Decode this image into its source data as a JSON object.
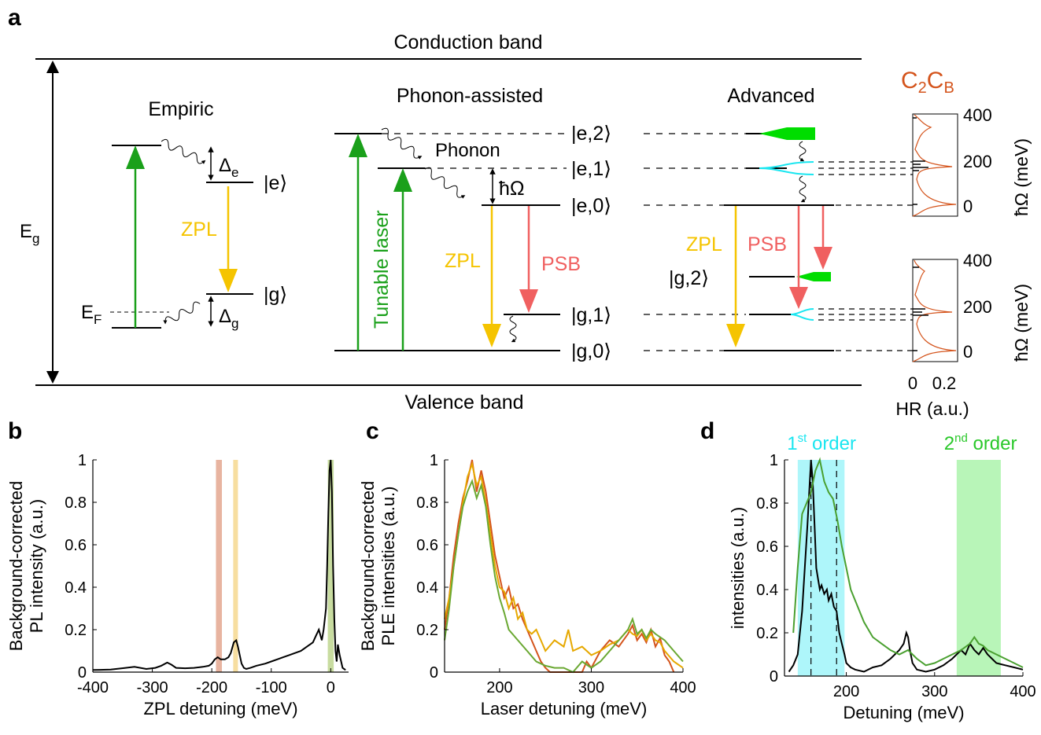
{
  "panel_a": {
    "panel_label": "a",
    "conduction_band": "Conduction band",
    "valence_band": "Valence band",
    "eg_label": "E",
    "eg_sub": "g",
    "ef_label": "E",
    "ef_sub": "F",
    "empiric": {
      "title": "Empiric",
      "delta": "Δ",
      "delta_e_sub": "e",
      "delta_g_sub": "g",
      "state_e": "|e⟩",
      "state_g": "|g⟩",
      "zpl": "ZPL"
    },
    "phonon_assisted": {
      "title": "Phonon-assisted",
      "phonon": "Phonon",
      "hbar_omega": "ħΩ",
      "tunable_laser": "Tunable laser",
      "zpl": "ZPL",
      "psb": "PSB",
      "levels": [
        "|e,2⟩",
        "|e,1⟩",
        "|e,0⟩",
        "|g,1⟩",
        "|g,0⟩"
      ]
    },
    "advanced": {
      "title": "Advanced",
      "zpl": "ZPL",
      "psb": "PSB",
      "g2": "|g,2⟩"
    },
    "inset": {
      "title_c2": "C",
      "title_sub1": "2",
      "title_cb": "C",
      "title_sub2": "B",
      "yticks": [
        "400",
        "200",
        "0"
      ],
      "xticks": [
        "0",
        "0.2"
      ],
      "xlabel": "HR (a.u.)",
      "ylabel": "ħΩ (meV)"
    },
    "colors": {
      "green": "#1aa01a",
      "zpl_yellow": "#f5c400",
      "psb_red": "#f06060",
      "cyan": "#19e6f0",
      "orange": "#d4541c",
      "bright_green": "#00dd00"
    }
  },
  "chart_data": [
    {
      "panel": "b",
      "type": "line",
      "ylabel": "Background-corrected PL intensity (a.u.)",
      "xlabel": "ZPL detuning (meV)",
      "xlim": [
        -400,
        30
      ],
      "ylim": [
        0,
        1
      ],
      "xticks": [
        "-400",
        "-300",
        "-200",
        "-100",
        "0"
      ],
      "yticks": [
        "0",
        "0.2",
        "0.4",
        "0.6",
        "0.8",
        "1"
      ],
      "series": [
        {
          "color": "#000000",
          "x": [
            -400,
            -370,
            -345,
            -330,
            -310,
            -295,
            -285,
            -275,
            -268,
            -260,
            -245,
            -230,
            -215,
            -205,
            -200,
            -195,
            -190,
            -185,
            -178,
            -172,
            -168,
            -163,
            -159,
            -156,
            -153,
            -150,
            -146,
            -142,
            -135,
            -125,
            -110,
            -100,
            -90,
            -80,
            -70,
            -60,
            -50,
            -40,
            -30,
            -25,
            -20,
            -15,
            -12,
            -8,
            -6,
            -4,
            -2,
            0,
            2,
            4,
            6,
            8,
            10,
            12,
            15,
            20,
            25
          ],
          "y": [
            0.01,
            0.012,
            0.02,
            0.025,
            0.015,
            0.02,
            0.03,
            0.045,
            0.035,
            0.02,
            0.018,
            0.02,
            0.025,
            0.03,
            0.04,
            0.06,
            0.07,
            0.06,
            0.06,
            0.07,
            0.09,
            0.14,
            0.15,
            0.12,
            0.08,
            0.04,
            0.02,
            0.015,
            0.02,
            0.03,
            0.04,
            0.05,
            0.06,
            0.07,
            0.08,
            0.09,
            0.1,
            0.12,
            0.14,
            0.17,
            0.2,
            0.15,
            0.2,
            0.3,
            0.5,
            0.75,
            0.95,
            1.0,
            0.85,
            0.5,
            0.25,
            0.1,
            0.05,
            0.13,
            0.08,
            0.02,
            0.01
          ]
        }
      ],
      "highlights": [
        {
          "center": -188,
          "width": 10,
          "color": "#e8b4a0"
        },
        {
          "center": -160,
          "width": 8,
          "color": "#f7dea0"
        },
        {
          "center": 0,
          "width": 10,
          "color": "#c8dca0"
        }
      ]
    },
    {
      "panel": "c",
      "type": "line",
      "ylabel": "Background-corrected PLE intensities (a.u.)",
      "xlabel": "Laser detuning (meV)",
      "xlim": [
        140,
        400
      ],
      "ylim": [
        0,
        1
      ],
      "xticks": [
        "200",
        "300",
        "400"
      ],
      "yticks": [
        "0",
        "0.2",
        "0.4",
        "0.6",
        "0.8",
        "1"
      ],
      "series": [
        {
          "color": "#d4541c",
          "x": [
            140,
            145,
            150,
            155,
            160,
            165,
            170,
            175,
            180,
            185,
            190,
            195,
            200,
            205,
            210,
            215,
            220,
            225,
            230,
            235,
            240,
            245,
            250,
            255,
            260,
            270,
            280,
            290,
            295,
            300,
            310,
            320,
            330,
            340,
            345,
            350,
            355,
            360,
            365,
            370,
            375,
            380,
            385,
            390
          ],
          "y": [
            0.2,
            0.35,
            0.55,
            0.7,
            0.82,
            0.9,
            1.0,
            0.85,
            0.95,
            0.85,
            0.7,
            0.55,
            0.45,
            0.35,
            0.4,
            0.3,
            0.32,
            0.25,
            0.2,
            0.15,
            0.1,
            0.05,
            0.02,
            0.0,
            0.0,
            0.0,
            0.0,
            0.0,
            0.05,
            0.02,
            0.1,
            0.15,
            0.12,
            0.18,
            0.22,
            0.15,
            0.18,
            0.14,
            0.2,
            0.12,
            0.16,
            0.08,
            0.05,
            0.0
          ]
        },
        {
          "color": "#e6a800",
          "x": [
            140,
            145,
            150,
            155,
            160,
            165,
            170,
            175,
            180,
            185,
            190,
            195,
            200,
            205,
            210,
            215,
            220,
            225,
            230,
            235,
            240,
            245,
            250,
            260,
            270,
            275,
            280,
            290,
            300,
            310,
            320,
            330,
            340,
            345,
            350,
            355,
            360,
            365,
            370,
            375,
            380,
            390,
            400
          ],
          "y": [
            0.25,
            0.35,
            0.5,
            0.65,
            0.8,
            0.92,
            0.98,
            0.88,
            0.92,
            0.8,
            0.65,
            0.5,
            0.4,
            0.38,
            0.3,
            0.35,
            0.25,
            0.28,
            0.2,
            0.18,
            0.2,
            0.15,
            0.1,
            0.15,
            0.12,
            0.2,
            0.1,
            0.12,
            0.08,
            0.1,
            0.13,
            0.15,
            0.2,
            0.18,
            0.17,
            0.2,
            0.15,
            0.18,
            0.15,
            0.14,
            0.1,
            0.05,
            0.02
          ]
        },
        {
          "color": "#6aa832",
          "x": [
            140,
            145,
            150,
            155,
            160,
            165,
            170,
            175,
            180,
            185,
            190,
            195,
            200,
            205,
            210,
            220,
            230,
            240,
            250,
            260,
            270,
            280,
            290,
            300,
            310,
            320,
            330,
            340,
            345,
            350,
            355,
            360,
            365,
            370,
            380,
            390,
            400
          ],
          "y": [
            0.15,
            0.3,
            0.5,
            0.65,
            0.78,
            0.85,
            0.9,
            0.82,
            0.88,
            0.78,
            0.6,
            0.45,
            0.35,
            0.28,
            0.2,
            0.15,
            0.1,
            0.05,
            0.03,
            0.02,
            0.02,
            0.0,
            0.05,
            0.02,
            0.05,
            0.1,
            0.15,
            0.2,
            0.25,
            0.18,
            0.2,
            0.16,
            0.2,
            0.18,
            0.15,
            0.1,
            0.05
          ]
        }
      ]
    },
    {
      "panel": "d",
      "type": "line",
      "ylabel": "intensities (a.u.)",
      "xlabel": "Detuning (meV)",
      "xlim": [
        130,
        400
      ],
      "ylim": [
        0,
        1
      ],
      "xticks": [
        "200",
        "300",
        "400"
      ],
      "yticks": [
        "0",
        "0.2",
        "0.4",
        "0.6",
        "0.8",
        "1"
      ],
      "band_labels": {
        "first": "1",
        "first_sup": "st",
        "first_word": " order",
        "second": "2",
        "second_sup": "nd",
        "second_word": " order"
      },
      "bands": [
        {
          "from": 145,
          "to": 198,
          "color": "#aef6fa"
        },
        {
          "from": 325,
          "to": 375,
          "color": "#b8f5b8"
        }
      ],
      "dashed_x": [
        160,
        189
      ],
      "series": [
        {
          "color": "#000000",
          "x": [
            135,
            140,
            145,
            150,
            153,
            156,
            158,
            160,
            162,
            164,
            166,
            168,
            170,
            172,
            175,
            178,
            180,
            183,
            186,
            189,
            192,
            195,
            198,
            200,
            205,
            210,
            220,
            230,
            240,
            250,
            255,
            260,
            265,
            268,
            270,
            272,
            275,
            280,
            290,
            300,
            310,
            320,
            325,
            330,
            335,
            340,
            345,
            350,
            355,
            360,
            365,
            370,
            380,
            390,
            400
          ],
          "y": [
            0.02,
            0.05,
            0.1,
            0.3,
            0.5,
            0.7,
            0.85,
            1.0,
            0.9,
            0.7,
            0.5,
            0.45,
            0.4,
            0.42,
            0.38,
            0.4,
            0.35,
            0.38,
            0.32,
            0.3,
            0.2,
            0.15,
            0.1,
            0.06,
            0.04,
            0.03,
            0.02,
            0.04,
            0.05,
            0.08,
            0.1,
            0.12,
            0.15,
            0.2,
            0.18,
            0.12,
            0.06,
            0.03,
            0.02,
            0.03,
            0.05,
            0.08,
            0.1,
            0.12,
            0.1,
            0.15,
            0.12,
            0.1,
            0.13,
            0.1,
            0.08,
            0.06,
            0.05,
            0.04,
            0.03
          ]
        },
        {
          "color": "#4aa030",
          "x": [
            140,
            145,
            150,
            155,
            160,
            165,
            170,
            175,
            180,
            185,
            190,
            195,
            200,
            205,
            210,
            215,
            220,
            230,
            240,
            250,
            260,
            270,
            280,
            290,
            300,
            310,
            320,
            330,
            340,
            345,
            350,
            355,
            360,
            370,
            380,
            390,
            400
          ],
          "y": [
            0.2,
            0.5,
            0.75,
            0.8,
            0.85,
            0.95,
            1.0,
            0.9,
            0.85,
            0.82,
            0.72,
            0.6,
            0.5,
            0.4,
            0.35,
            0.3,
            0.25,
            0.18,
            0.15,
            0.12,
            0.1,
            0.12,
            0.08,
            0.05,
            0.06,
            0.08,
            0.1,
            0.12,
            0.15,
            0.18,
            0.15,
            0.14,
            0.12,
            0.1,
            0.08,
            0.06,
            0.04
          ]
        }
      ]
    }
  ]
}
